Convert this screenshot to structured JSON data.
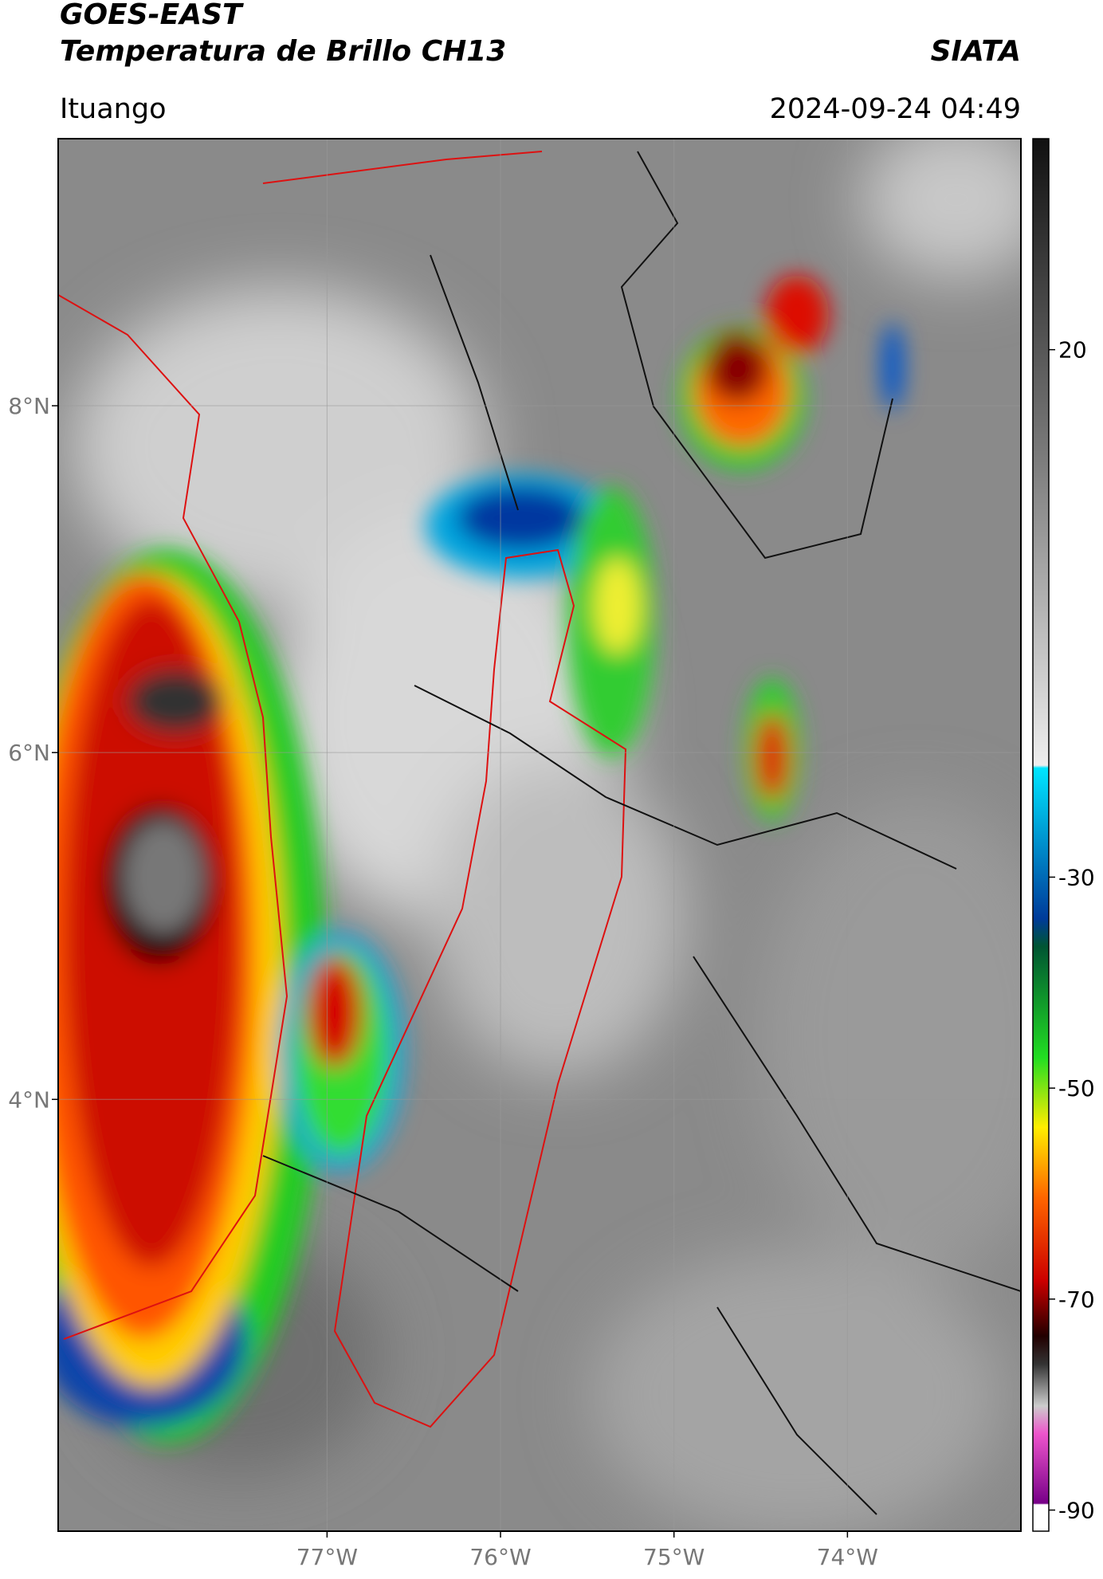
{
  "header": {
    "title": "GOES-EAST",
    "subtitle": "Temperatura de Brillo CH13",
    "source": "SIATA",
    "location": "Ituango",
    "datetime": "2024-09-24 04:49"
  },
  "map": {
    "lonlim": [
      -78.55,
      -73.0
    ],
    "latlim": [
      1.51,
      9.54
    ],
    "lat_ticks": [
      {
        "value": 8,
        "label": "8°N"
      },
      {
        "value": 6,
        "label": "6°N"
      },
      {
        "value": 4,
        "label": "4°N"
      }
    ],
    "lon_ticks": [
      {
        "value": -77,
        "label": "77°W"
      },
      {
        "value": -76,
        "label": "76°W"
      },
      {
        "value": -75,
        "label": "75°W"
      },
      {
        "value": -74,
        "label": "74°W"
      }
    ],
    "grid": true
  },
  "colorbar": {
    "lim": [
      -92,
      40
    ],
    "ticks": [
      20,
      -30,
      -50,
      -70,
      -90
    ]
  }
}
